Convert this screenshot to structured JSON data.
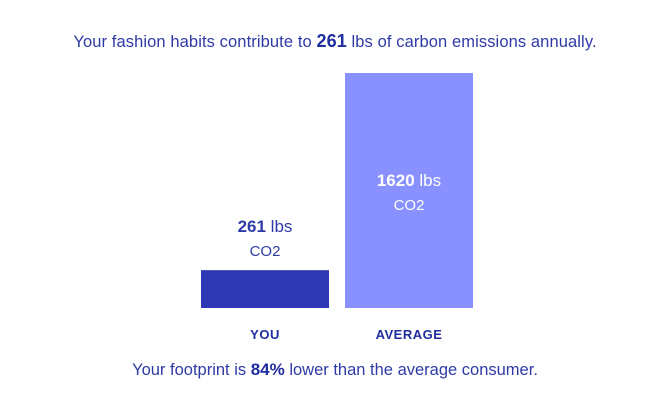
{
  "headline": {
    "prefix": "Your fashion habits contribute to ",
    "value": "261",
    "suffix": " lbs of carbon emissions annually."
  },
  "chart_data": {
    "type": "bar",
    "categories": [
      "YOU",
      "AVERAGE"
    ],
    "values": [
      261,
      1620
    ],
    "unit": "lbs",
    "sublabel": "CO2",
    "ylim": [
      0,
      1620
    ],
    "colors": [
      "#2e3ab5",
      "#8891ff"
    ]
  },
  "footer": {
    "prefix": "Your footprint is ",
    "value": "84%",
    "suffix": " lower than the average consumer."
  }
}
